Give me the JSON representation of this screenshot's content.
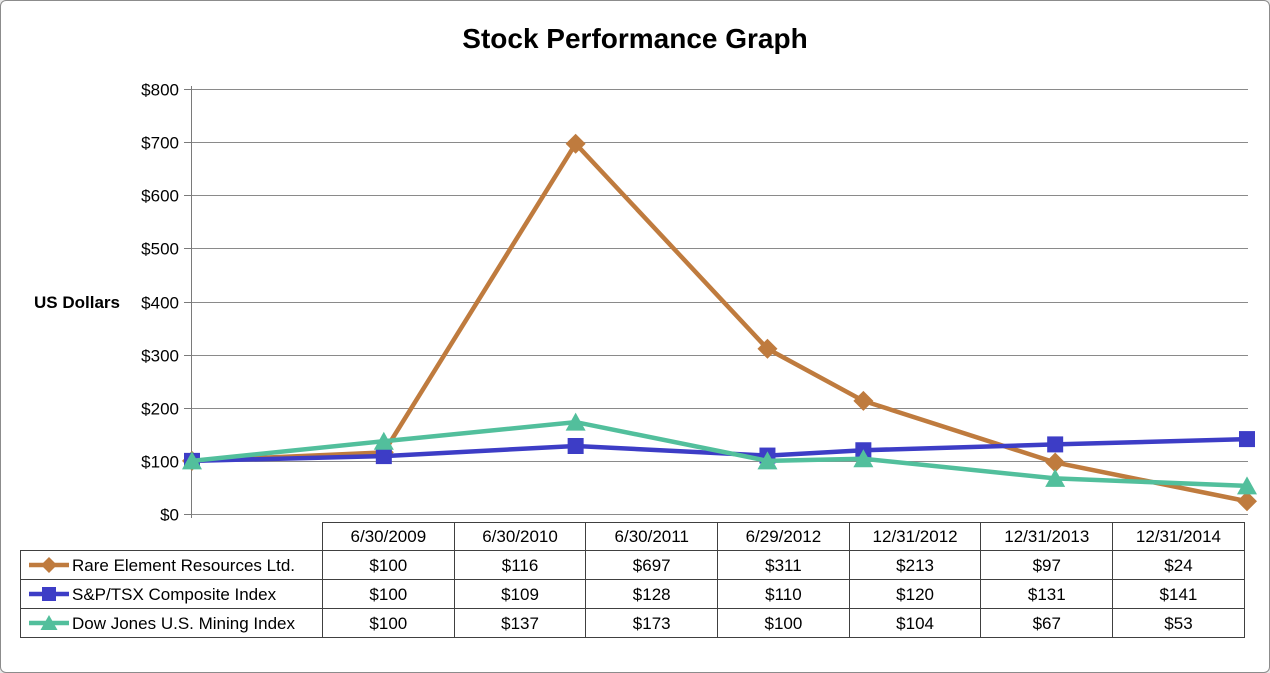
{
  "frame": {
    "background": "#ffffff",
    "border_color": "#8c8c8c"
  },
  "chart_data": {
    "type": "line",
    "title": "Stock Performance Graph",
    "ylabel": "US Dollars",
    "ylim": [
      0,
      800
    ],
    "ytick_step": 100,
    "ytick_labels": [
      "$800",
      "$700",
      "$600",
      "$500",
      "$400",
      "$300",
      "$200",
      "$100",
      "$0"
    ],
    "grid": true,
    "gridline_color": "#8a8a8a",
    "axis_color": "#7a7a7a",
    "legend_position": "table-left",
    "categories": [
      "6/30/2009",
      "6/30/2010",
      "6/30/2011",
      "6/29/2012",
      "12/31/2012",
      "12/31/2013",
      "12/31/2014"
    ],
    "x_years": [
      0,
      1,
      2,
      3,
      3.5,
      4.5,
      5.5
    ],
    "value_prefix": "$",
    "series": [
      {
        "name": "Rare Element Resources Ltd.",
        "marker": "diamond",
        "color": "#BF7B3E",
        "values": [
          100,
          116,
          697,
          311,
          213,
          97,
          24
        ]
      },
      {
        "name": "S&P/TSX Composite Index",
        "marker": "square",
        "color": "#3D3DC6",
        "values": [
          100,
          109,
          128,
          110,
          120,
          131,
          141
        ]
      },
      {
        "name": "Dow Jones U.S. Mining Index",
        "marker": "triangle",
        "color": "#52BF9C",
        "values": [
          100,
          137,
          173,
          100,
          104,
          67,
          53
        ]
      }
    ]
  },
  "table": {
    "border_color": "#404040"
  }
}
